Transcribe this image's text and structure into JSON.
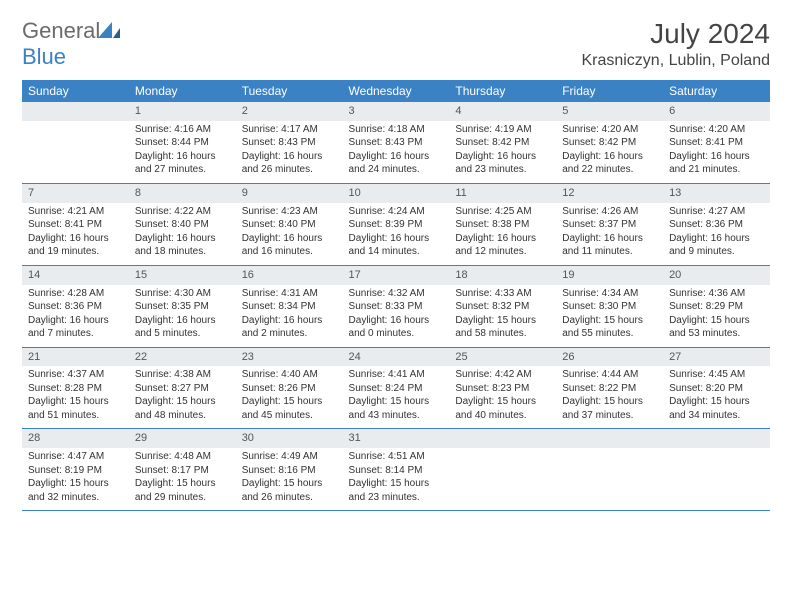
{
  "logo": {
    "word1": "General",
    "word2": "Blue"
  },
  "header": {
    "month_title": "July 2024",
    "location": "Krasniczyn, Lublin, Poland"
  },
  "colors": {
    "header_bg": "#3b82c4",
    "header_text": "#ffffff",
    "daynum_bg": "#e9ecef",
    "rule": "#3b82c4",
    "body_text": "#333333",
    "logo_gray": "#6b6b6b",
    "logo_blue": "#3b82c4"
  },
  "weekdays": [
    "Sunday",
    "Monday",
    "Tuesday",
    "Wednesday",
    "Thursday",
    "Friday",
    "Saturday"
  ],
  "weeks": [
    [
      null,
      {
        "n": "1",
        "sunrise": "4:16 AM",
        "sunset": "8:44 PM",
        "daylight": "16 hours and 27 minutes."
      },
      {
        "n": "2",
        "sunrise": "4:17 AM",
        "sunset": "8:43 PM",
        "daylight": "16 hours and 26 minutes."
      },
      {
        "n": "3",
        "sunrise": "4:18 AM",
        "sunset": "8:43 PM",
        "daylight": "16 hours and 24 minutes."
      },
      {
        "n": "4",
        "sunrise": "4:19 AM",
        "sunset": "8:42 PM",
        "daylight": "16 hours and 23 minutes."
      },
      {
        "n": "5",
        "sunrise": "4:20 AM",
        "sunset": "8:42 PM",
        "daylight": "16 hours and 22 minutes."
      },
      {
        "n": "6",
        "sunrise": "4:20 AM",
        "sunset": "8:41 PM",
        "daylight": "16 hours and 21 minutes."
      }
    ],
    [
      {
        "n": "7",
        "sunrise": "4:21 AM",
        "sunset": "8:41 PM",
        "daylight": "16 hours and 19 minutes."
      },
      {
        "n": "8",
        "sunrise": "4:22 AM",
        "sunset": "8:40 PM",
        "daylight": "16 hours and 18 minutes."
      },
      {
        "n": "9",
        "sunrise": "4:23 AM",
        "sunset": "8:40 PM",
        "daylight": "16 hours and 16 minutes."
      },
      {
        "n": "10",
        "sunrise": "4:24 AM",
        "sunset": "8:39 PM",
        "daylight": "16 hours and 14 minutes."
      },
      {
        "n": "11",
        "sunrise": "4:25 AM",
        "sunset": "8:38 PM",
        "daylight": "16 hours and 12 minutes."
      },
      {
        "n": "12",
        "sunrise": "4:26 AM",
        "sunset": "8:37 PM",
        "daylight": "16 hours and 11 minutes."
      },
      {
        "n": "13",
        "sunrise": "4:27 AM",
        "sunset": "8:36 PM",
        "daylight": "16 hours and 9 minutes."
      }
    ],
    [
      {
        "n": "14",
        "sunrise": "4:28 AM",
        "sunset": "8:36 PM",
        "daylight": "16 hours and 7 minutes."
      },
      {
        "n": "15",
        "sunrise": "4:30 AM",
        "sunset": "8:35 PM",
        "daylight": "16 hours and 5 minutes."
      },
      {
        "n": "16",
        "sunrise": "4:31 AM",
        "sunset": "8:34 PM",
        "daylight": "16 hours and 2 minutes."
      },
      {
        "n": "17",
        "sunrise": "4:32 AM",
        "sunset": "8:33 PM",
        "daylight": "16 hours and 0 minutes."
      },
      {
        "n": "18",
        "sunrise": "4:33 AM",
        "sunset": "8:32 PM",
        "daylight": "15 hours and 58 minutes."
      },
      {
        "n": "19",
        "sunrise": "4:34 AM",
        "sunset": "8:30 PM",
        "daylight": "15 hours and 55 minutes."
      },
      {
        "n": "20",
        "sunrise": "4:36 AM",
        "sunset": "8:29 PM",
        "daylight": "15 hours and 53 minutes."
      }
    ],
    [
      {
        "n": "21",
        "sunrise": "4:37 AM",
        "sunset": "8:28 PM",
        "daylight": "15 hours and 51 minutes."
      },
      {
        "n": "22",
        "sunrise": "4:38 AM",
        "sunset": "8:27 PM",
        "daylight": "15 hours and 48 minutes."
      },
      {
        "n": "23",
        "sunrise": "4:40 AM",
        "sunset": "8:26 PM",
        "daylight": "15 hours and 45 minutes."
      },
      {
        "n": "24",
        "sunrise": "4:41 AM",
        "sunset": "8:24 PM",
        "daylight": "15 hours and 43 minutes."
      },
      {
        "n": "25",
        "sunrise": "4:42 AM",
        "sunset": "8:23 PM",
        "daylight": "15 hours and 40 minutes."
      },
      {
        "n": "26",
        "sunrise": "4:44 AM",
        "sunset": "8:22 PM",
        "daylight": "15 hours and 37 minutes."
      },
      {
        "n": "27",
        "sunrise": "4:45 AM",
        "sunset": "8:20 PM",
        "daylight": "15 hours and 34 minutes."
      }
    ],
    [
      {
        "n": "28",
        "sunrise": "4:47 AM",
        "sunset": "8:19 PM",
        "daylight": "15 hours and 32 minutes."
      },
      {
        "n": "29",
        "sunrise": "4:48 AM",
        "sunset": "8:17 PM",
        "daylight": "15 hours and 29 minutes."
      },
      {
        "n": "30",
        "sunrise": "4:49 AM",
        "sunset": "8:16 PM",
        "daylight": "15 hours and 26 minutes."
      },
      {
        "n": "31",
        "sunrise": "4:51 AM",
        "sunset": "8:14 PM",
        "daylight": "15 hours and 23 minutes."
      },
      null,
      null,
      null
    ]
  ],
  "labels": {
    "sunrise": "Sunrise: ",
    "sunset": "Sunset: ",
    "daylight": "Daylight: "
  }
}
